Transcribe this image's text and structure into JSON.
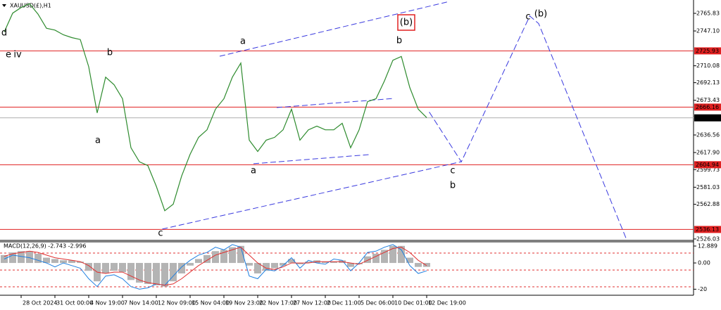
{
  "chart_data": [
    {
      "type": "line",
      "title": "XAUUSD(£),H1",
      "categories": [
        null,
        null,
        "28 Oct 2024",
        null,
        null,
        null,
        "31 Oct 00:00",
        null,
        null,
        null,
        "4 Nov 19:00",
        null,
        null,
        null,
        "7 Nov 14:00",
        null,
        null,
        null,
        "12 Nov 09:00",
        null,
        null,
        null,
        "15 Nov 04:00",
        null,
        null,
        null,
        "19 Nov 23:00",
        null,
        null,
        null,
        "22 Nov 17:00",
        null,
        null,
        null,
        "27 Nov 12:00",
        null,
        null,
        null,
        "2 Dec 11:00",
        null,
        null,
        null,
        "5 Dec 06:00",
        null,
        null,
        null,
        "10 Dec 01:00",
        null,
        null,
        null,
        "12 Dec 19:00",
        null,
        null,
        null,
        null,
        null,
        null,
        null,
        null,
        null,
        null,
        null,
        null,
        null,
        null,
        null,
        null,
        null,
        null,
        null,
        null,
        null,
        null,
        null,
        null,
        null,
        null,
        null,
        null,
        null,
        null,
        null
      ],
      "values": [
        2746,
        2766,
        2772,
        2776,
        2765,
        2750,
        2748,
        2743,
        2740,
        2738,
        2709,
        2660,
        2698,
        2690,
        2675,
        2623,
        2608,
        2604,
        2582,
        2556,
        2563,
        2593,
        2616,
        2634,
        2642,
        2664,
        2675,
        2698,
        2713,
        2631,
        2619,
        2631,
        2634,
        2642,
        2664,
        2631,
        2642,
        2646,
        2642,
        2642,
        2649,
        2623,
        2642,
        2672,
        2675,
        2694,
        2716,
        2720,
        2687,
        2664,
        2655,
        null,
        null,
        null,
        null,
        null,
        null,
        null,
        null,
        null,
        null,
        null,
        null,
        null,
        null,
        null,
        null,
        null,
        null,
        null,
        null,
        null,
        null,
        null,
        null,
        null,
        null,
        null,
        null,
        null,
        null,
        null
      ],
      "color": "#2e8b2e",
      "ylim": [
        2524.5,
        2780
      ],
      "yticks": [
        2765.83,
        {
          "value": 2747.1,
          "label": "2747.10"
        },
        2710.08,
        2692.13,
        2673.43,
        2636.56,
        {
          "value": 2617.9,
          "label": "2617.90"
        },
        2599.73,
        2581.03,
        2562.88,
        2526.03
      ],
      "levels": [
        2725.93,
        2666.16,
        2604.94,
        2536.13
      ],
      "level_color": "#e02020",
      "current_price": 2654.75,
      "projection": {
        "x": [
          50.3,
          54.1,
          62.2,
          63.25,
          73.7
        ],
        "values": [
          2661,
          2608,
          2763,
          2755,
          2524.5
        ],
        "color": "#3a3adf"
      },
      "trendlines": [
        {
          "x": [
            25.5,
            52.4
          ],
          "values": [
            2720.2,
            2777.8
          ]
        },
        {
          "x": [
            18.7,
            54.1
          ],
          "values": [
            2536.5,
            2608.2
          ]
        },
        {
          "x": [
            29.5,
            43.25
          ],
          "values": [
            2606,
            2615.7
          ]
        },
        {
          "x": [
            32.25,
            46.2
          ],
          "values": [
            2665.7,
            2675.4
          ]
        }
      ],
      "annotations": [
        {
          "text": "d",
          "color": "#000000"
        },
        {
          "text": "e",
          "color": "#000000"
        },
        {
          "text": "iv",
          "color": "#e020e0"
        },
        {
          "text": "b",
          "color": "#e020e0"
        },
        {
          "text": "a",
          "color": "#e020e0"
        },
        {
          "text": "c",
          "color": "#e020e0"
        },
        {
          "text": "a",
          "color": "#e020e0"
        },
        {
          "text": "a",
          "color": "#000000"
        },
        {
          "text": "b",
          "color": "#000000"
        },
        {
          "text": "(b)",
          "color": "#1a1ad0",
          "boxed": true
        },
        {
          "text": "c",
          "color": "#000000"
        },
        {
          "text": "b",
          "color": "#e020e0"
        },
        {
          "text": "c",
          "color": "#e020e0"
        },
        {
          "text": "(b)",
          "color": "#1a1ad0"
        }
      ]
    },
    {
      "type": "macd",
      "title": "MACD(12,26,9) -2.743 -2.996",
      "histogram": [
        6,
        8,
        9,
        9,
        7,
        4,
        3,
        2,
        2,
        1,
        -6,
        -14,
        -8,
        -6,
        -7,
        -13,
        -15,
        -16,
        -17,
        -18,
        -14,
        -8,
        -2,
        3,
        6,
        9,
        10,
        12,
        13,
        -2,
        -8,
        -6,
        -4,
        -2,
        3,
        -1,
        1,
        2,
        1,
        1,
        2,
        -3,
        -1,
        5,
        7,
        10,
        13,
        13,
        4,
        -3,
        -3
      ],
      "signal": [
        5,
        7,
        8,
        9,
        8,
        6,
        4,
        3,
        2,
        1,
        -2,
        -7,
        -8,
        -7,
        -7,
        -10,
        -13,
        -15,
        -16,
        -17,
        -16,
        -12,
        -7,
        -2,
        2,
        6,
        8,
        10,
        12,
        6,
        0,
        -4,
        -5,
        -3,
        0,
        0,
        0,
        1,
        1,
        1,
        1,
        0,
        -1,
        2,
        5,
        8,
        11,
        12,
        8,
        2,
        -2
      ],
      "main": [
        3,
        6,
        5,
        4,
        2,
        0,
        -3,
        0,
        -2,
        -4,
        -12,
        -18,
        -10,
        -9,
        -12,
        -18,
        -20,
        -19,
        -16,
        -17,
        -10,
        -3,
        2,
        6,
        8,
        12,
        10,
        14,
        12,
        -10,
        -12,
        -5,
        -6,
        -2,
        4,
        -4,
        2,
        0,
        -1,
        3,
        2,
        -6,
        0,
        8,
        9,
        12,
        14,
        10,
        -2,
        -8,
        -6
      ],
      "histogram_color": "#b4b4b4",
      "signal_color": "#e03030",
      "main_color": "#1e7fe0",
      "ylim": [
        -24.6,
        16.1
      ],
      "yticks": [
        12.889,
        {
          "value": 0,
          "label": "0.00"
        },
        -20
      ],
      "levels": [
        7.5,
        -5.4,
        -18.2
      ]
    }
  ]
}
